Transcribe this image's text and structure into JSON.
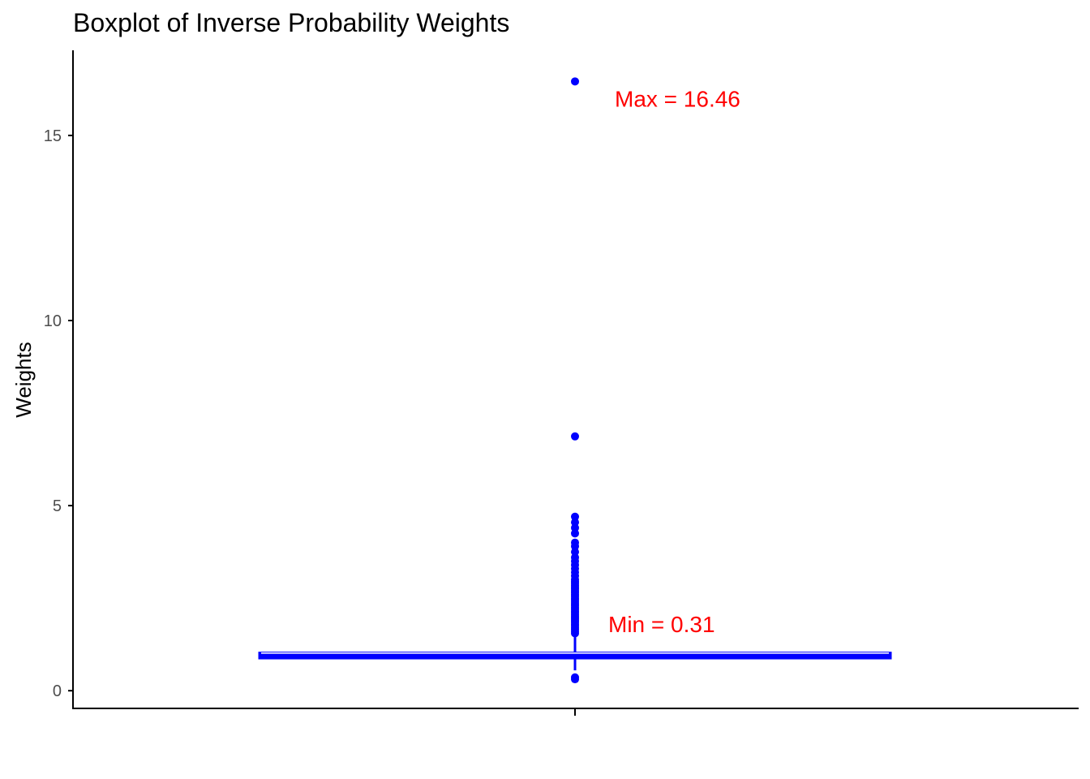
{
  "chart_data": {
    "type": "boxplot",
    "title": "Boxplot of Inverse Probability Weights",
    "xlabel": "",
    "ylabel": "Weights",
    "ylim": [
      -0.5,
      17.3
    ],
    "yticks": [
      0,
      5,
      10,
      15
    ],
    "grid": false,
    "colors": {
      "box": "#0000ff",
      "annotation": "#ff0000",
      "axis": "#000000",
      "tick_text": "#4d4d4d"
    },
    "box": {
      "min_whisker": 0.55,
      "q1": 0.88,
      "median": 0.95,
      "q3": 1.02,
      "max_whisker": 1.45
    },
    "outliers": [
      0.31,
      0.36,
      1.55,
      1.6,
      1.65,
      1.7,
      1.75,
      1.8,
      1.85,
      1.9,
      1.95,
      2.0,
      2.05,
      2.1,
      2.15,
      2.2,
      2.25,
      2.3,
      2.35,
      2.4,
      2.45,
      2.5,
      2.55,
      2.6,
      2.65,
      2.7,
      2.75,
      2.8,
      2.85,
      2.9,
      2.95,
      3.0,
      3.1,
      3.2,
      3.3,
      3.4,
      3.5,
      3.6,
      3.75,
      3.9,
      4.0,
      4.25,
      4.4,
      4.55,
      4.7,
      6.87,
      16.46
    ],
    "annotations": [
      {
        "text": "Max = 16.46",
        "y": 16.0
      },
      {
        "text": "Min = 0.31",
        "y": 1.8
      }
    ]
  }
}
